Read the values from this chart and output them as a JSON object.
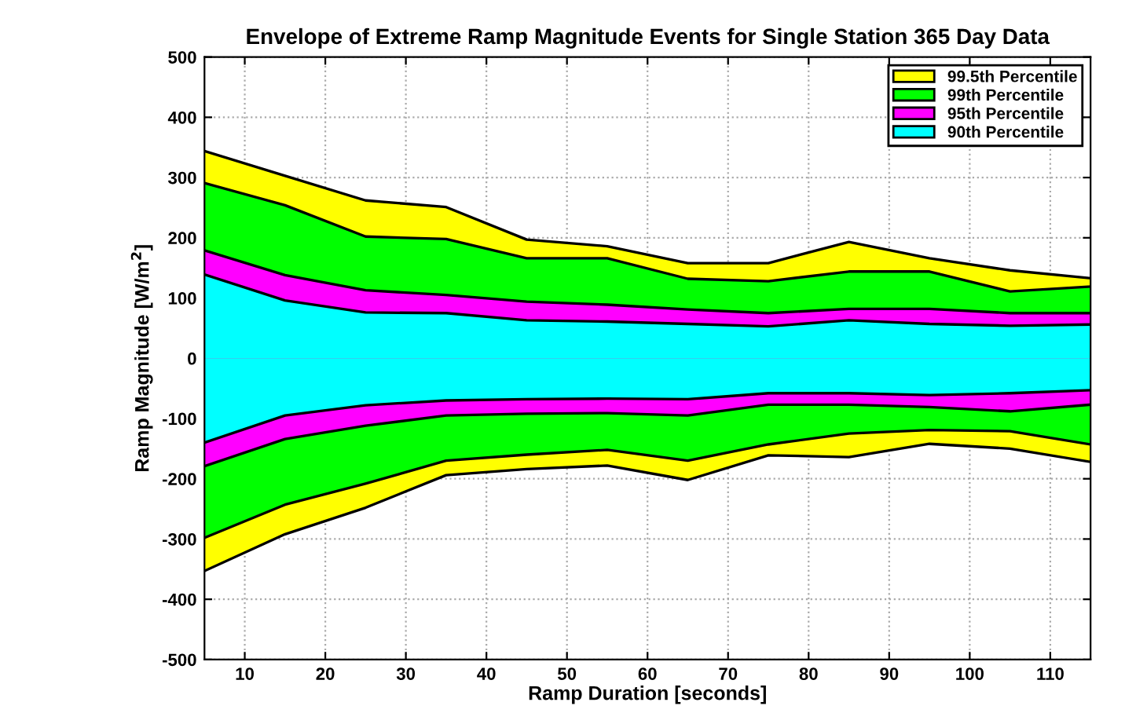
{
  "chart_data": {
    "type": "area",
    "title": "Envelope of Extreme Ramp Magnitude Events for Single Station 365 Day Data",
    "xlabel": "Ramp Duration [seconds]",
    "ylabel": "Ramp Magnitude [W/m$^{2}$]",
    "x": [
      5,
      15,
      25,
      35,
      45,
      55,
      65,
      75,
      85,
      95,
      105,
      115
    ],
    "series": [
      {
        "name": "99.5th Percentile",
        "color": "#ffff00",
        "values": [
          344,
          303,
          262,
          251,
          197,
          186,
          158,
          158,
          193,
          166,
          146,
          133
        ]
      },
      {
        "name": "99th Percentile",
        "color": "#00ff00",
        "values": [
          291,
          254,
          202,
          198,
          166,
          166,
          132,
          128,
          144,
          144,
          111,
          119
        ]
      },
      {
        "name": "95th Percentile",
        "color": "#ff00ff",
        "values": [
          179,
          138,
          113,
          105,
          94,
          89,
          81,
          75,
          82,
          82,
          75,
          75
        ]
      },
      {
        "name": "90th Percentile",
        "color": "#00ffff",
        "values": [
          139,
          96,
          76,
          75,
          63,
          61,
          57,
          53,
          63,
          57,
          54,
          56
        ]
      },
      {
        "color": "#ffff00",
        "values": [
          -353,
          -292,
          -248,
          -194,
          -184,
          -178,
          -202,
          -161,
          -164,
          -142,
          -150,
          -172
        ]
      },
      {
        "color": "#00ff00",
        "values": [
          -298,
          -243,
          -208,
          -170,
          -160,
          -152,
          -170,
          -143,
          -125,
          -119,
          -121,
          -143
        ]
      },
      {
        "color": "#ff00ff",
        "values": [
          -179,
          -134,
          -112,
          -95,
          -92,
          -91,
          -95,
          -77,
          -77,
          -81,
          -88,
          -77
        ]
      },
      {
        "color": "#00ffff",
        "values": [
          -140,
          -95,
          -78,
          -70,
          -68,
          -67,
          -68,
          -58,
          -58,
          -61,
          -58,
          -53
        ]
      }
    ],
    "xlim": [
      5,
      115
    ],
    "xticks": [
      10,
      20,
      30,
      40,
      50,
      60,
      70,
      80,
      90,
      100,
      110
    ],
    "ylim": [
      -500,
      500
    ],
    "yticks": [
      -500,
      -400,
      -300,
      -200,
      -100,
      0,
      100,
      200,
      300,
      400,
      500
    ],
    "grid": true,
    "legend": "top right"
  }
}
